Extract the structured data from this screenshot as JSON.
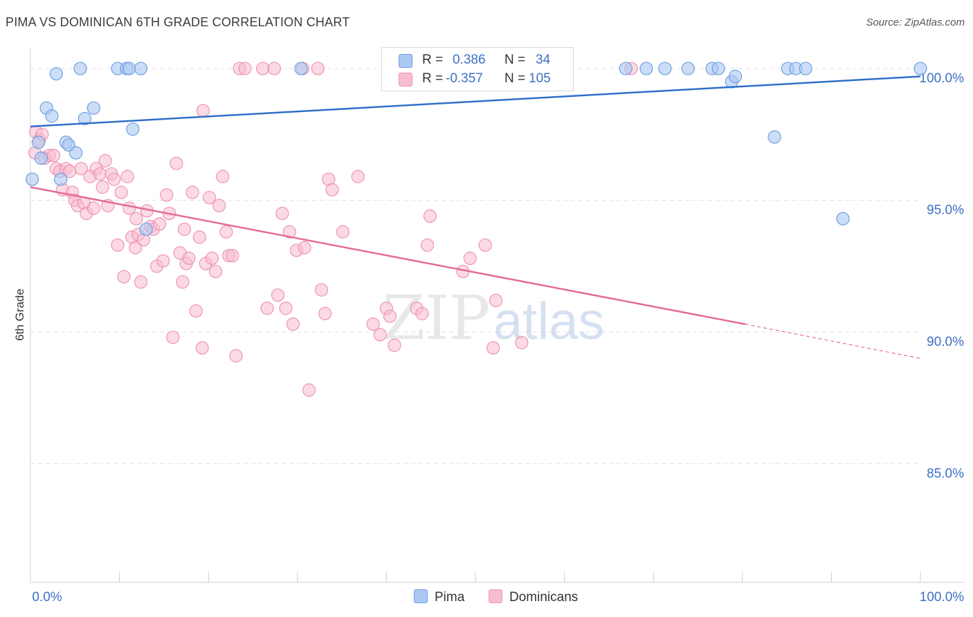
{
  "title": "PIMA VS DOMINICAN 6TH GRADE CORRELATION CHART",
  "source": "Source: ZipAtlas.com",
  "watermark": {
    "zip": "ZIP",
    "atlas": "atlas"
  },
  "legend": {
    "pima": {
      "r_label": "R =",
      "r_value": "0.386",
      "n_label": "N =",
      "n_value": "34"
    },
    "dominican": {
      "r_label": "R =",
      "r_value": "-0.357",
      "n_label": "N =",
      "n_value": "105"
    }
  },
  "bottom_legend": {
    "pima": "Pima",
    "dominican": "Dominicans"
  },
  "colors": {
    "pima_fill": "#aac8f2",
    "pima_stroke": "#6f9ee0",
    "pima_line": "#2f6fc9",
    "dom_fill": "#f8bcd0",
    "dom_stroke": "#ee93b1",
    "dom_line": "#e46b97",
    "axis_text": "#3d6fc6",
    "grid": "#e2e2e2"
  },
  "chart_data": {
    "type": "scatter",
    "title": "PIMA VS DOMINICAN 6TH GRADE CORRELATION CHART",
    "xlabel": "",
    "ylabel": "6th Grade",
    "xlim": [
      0,
      100
    ],
    "ylim": [
      80.5,
      100.5
    ],
    "x_tick_labels": [
      "0.0%",
      "100.0%"
    ],
    "y_ticks": [
      85,
      90,
      95,
      100
    ],
    "y_tick_labels": [
      "85.0%",
      "90.0%",
      "95.0%",
      "100.0%"
    ],
    "series": [
      {
        "name": "Pima",
        "r": 0.386,
        "n": 34,
        "trend": {
          "x0": 0,
          "y0": 97.8,
          "x1": 100,
          "y1": 99.7
        },
        "points": [
          [
            0.2,
            95.8
          ],
          [
            0.9,
            97.2
          ],
          [
            1.2,
            96.6
          ],
          [
            1.8,
            98.5
          ],
          [
            2.4,
            98.2
          ],
          [
            2.9,
            99.8
          ],
          [
            3.4,
            95.8
          ],
          [
            4.0,
            97.2
          ],
          [
            4.3,
            97.1
          ],
          [
            5.1,
            96.8
          ],
          [
            5.6,
            100.0
          ],
          [
            6.1,
            98.1
          ],
          [
            7.1,
            98.5
          ],
          [
            9.8,
            100.0
          ],
          [
            10.8,
            100.0
          ],
          [
            11.1,
            100.0
          ],
          [
            11.5,
            97.7
          ],
          [
            12.4,
            100.0
          ],
          [
            13.0,
            93.9
          ],
          [
            30.4,
            100.0
          ],
          [
            66.9,
            100.0
          ],
          [
            69.2,
            100.0
          ],
          [
            71.3,
            100.0
          ],
          [
            73.9,
            100.0
          ],
          [
            76.6,
            100.0
          ],
          [
            77.3,
            100.0
          ],
          [
            78.8,
            99.5
          ],
          [
            79.2,
            99.7
          ],
          [
            83.6,
            97.4
          ],
          [
            85.1,
            100.0
          ],
          [
            86.0,
            100.0
          ],
          [
            87.1,
            100.0
          ],
          [
            91.3,
            94.3
          ],
          [
            100.0,
            100.0
          ]
        ]
      },
      {
        "name": "Dominicans",
        "r": -0.357,
        "n": 105,
        "trend": {
          "x0": 0,
          "y0": 95.5,
          "x1": 80.3,
          "y1": 90.3,
          "dash_x1": 100,
          "dash_y1": 89.0
        },
        "points": [
          [
            0.5,
            96.8
          ],
          [
            0.6,
            97.6
          ],
          [
            1.0,
            97.3
          ],
          [
            1.3,
            97.5
          ],
          [
            1.6,
            96.6
          ],
          [
            2.1,
            96.7
          ],
          [
            2.6,
            96.7
          ],
          [
            2.9,
            96.2
          ],
          [
            3.3,
            96.1
          ],
          [
            3.6,
            95.4
          ],
          [
            4.0,
            96.2
          ],
          [
            4.4,
            96.1
          ],
          [
            4.7,
            95.3
          ],
          [
            5.0,
            95.0
          ],
          [
            5.3,
            94.8
          ],
          [
            5.7,
            96.2
          ],
          [
            6.0,
            94.9
          ],
          [
            6.3,
            94.5
          ],
          [
            6.7,
            95.9
          ],
          [
            7.1,
            94.7
          ],
          [
            7.4,
            96.2
          ],
          [
            7.8,
            96.0
          ],
          [
            8.1,
            95.5
          ],
          [
            8.4,
            96.5
          ],
          [
            8.7,
            94.8
          ],
          [
            9.1,
            96.0
          ],
          [
            9.4,
            95.8
          ],
          [
            9.8,
            93.3
          ],
          [
            10.2,
            95.3
          ],
          [
            10.5,
            92.1
          ],
          [
            10.9,
            95.9
          ],
          [
            11.1,
            94.7
          ],
          [
            11.4,
            93.6
          ],
          [
            11.8,
            93.2
          ],
          [
            12.1,
            93.7
          ],
          [
            12.4,
            91.9
          ],
          [
            12.7,
            93.5
          ],
          [
            13.1,
            94.6
          ],
          [
            13.5,
            94.0
          ],
          [
            13.8,
            93.9
          ],
          [
            14.2,
            92.5
          ],
          [
            14.5,
            94.1
          ],
          [
            14.9,
            92.7
          ],
          [
            15.3,
            95.2
          ],
          [
            15.6,
            94.5
          ],
          [
            16.0,
            89.8
          ],
          [
            16.4,
            96.4
          ],
          [
            16.8,
            93.0
          ],
          [
            17.1,
            91.9
          ],
          [
            17.5,
            92.6
          ],
          [
            17.8,
            92.8
          ],
          [
            18.2,
            95.3
          ],
          [
            18.6,
            90.8
          ],
          [
            19.0,
            93.6
          ],
          [
            19.3,
            89.4
          ],
          [
            19.7,
            92.6
          ],
          [
            20.1,
            95.1
          ],
          [
            20.4,
            92.8
          ],
          [
            20.8,
            92.3
          ],
          [
            21.2,
            94.8
          ],
          [
            21.6,
            95.9
          ],
          [
            22.0,
            93.8
          ],
          [
            22.3,
            92.9
          ],
          [
            22.7,
            92.9
          ],
          [
            23.1,
            89.1
          ],
          [
            23.5,
            100.0
          ],
          [
            24.1,
            100.0
          ],
          [
            26.1,
            100.0
          ],
          [
            26.6,
            90.9
          ],
          [
            27.4,
            100.0
          ],
          [
            27.8,
            91.4
          ],
          [
            28.3,
            94.5
          ],
          [
            28.7,
            90.9
          ],
          [
            29.1,
            93.8
          ],
          [
            29.5,
            90.3
          ],
          [
            29.9,
            93.1
          ],
          [
            30.6,
            100.0
          ],
          [
            30.8,
            93.2
          ],
          [
            31.3,
            87.8
          ],
          [
            32.3,
            100.0
          ],
          [
            32.7,
            91.6
          ],
          [
            33.1,
            90.7
          ],
          [
            33.5,
            95.8
          ],
          [
            33.9,
            95.4
          ],
          [
            35.1,
            93.8
          ],
          [
            36.8,
            95.9
          ],
          [
            38.5,
            90.3
          ],
          [
            39.3,
            89.9
          ],
          [
            40.0,
            90.9
          ],
          [
            40.4,
            90.6
          ],
          [
            40.9,
            89.5
          ],
          [
            43.4,
            90.9
          ],
          [
            44.0,
            90.7
          ],
          [
            44.6,
            93.3
          ],
          [
            44.9,
            94.4
          ],
          [
            48.6,
            92.3
          ],
          [
            49.4,
            92.8
          ],
          [
            51.1,
            93.3
          ],
          [
            52.0,
            89.4
          ],
          [
            52.3,
            91.2
          ],
          [
            55.2,
            89.6
          ],
          [
            67.5,
            100.0
          ],
          [
            19.4,
            98.4
          ],
          [
            17.3,
            93.9
          ],
          [
            11.9,
            94.3
          ]
        ]
      }
    ]
  }
}
